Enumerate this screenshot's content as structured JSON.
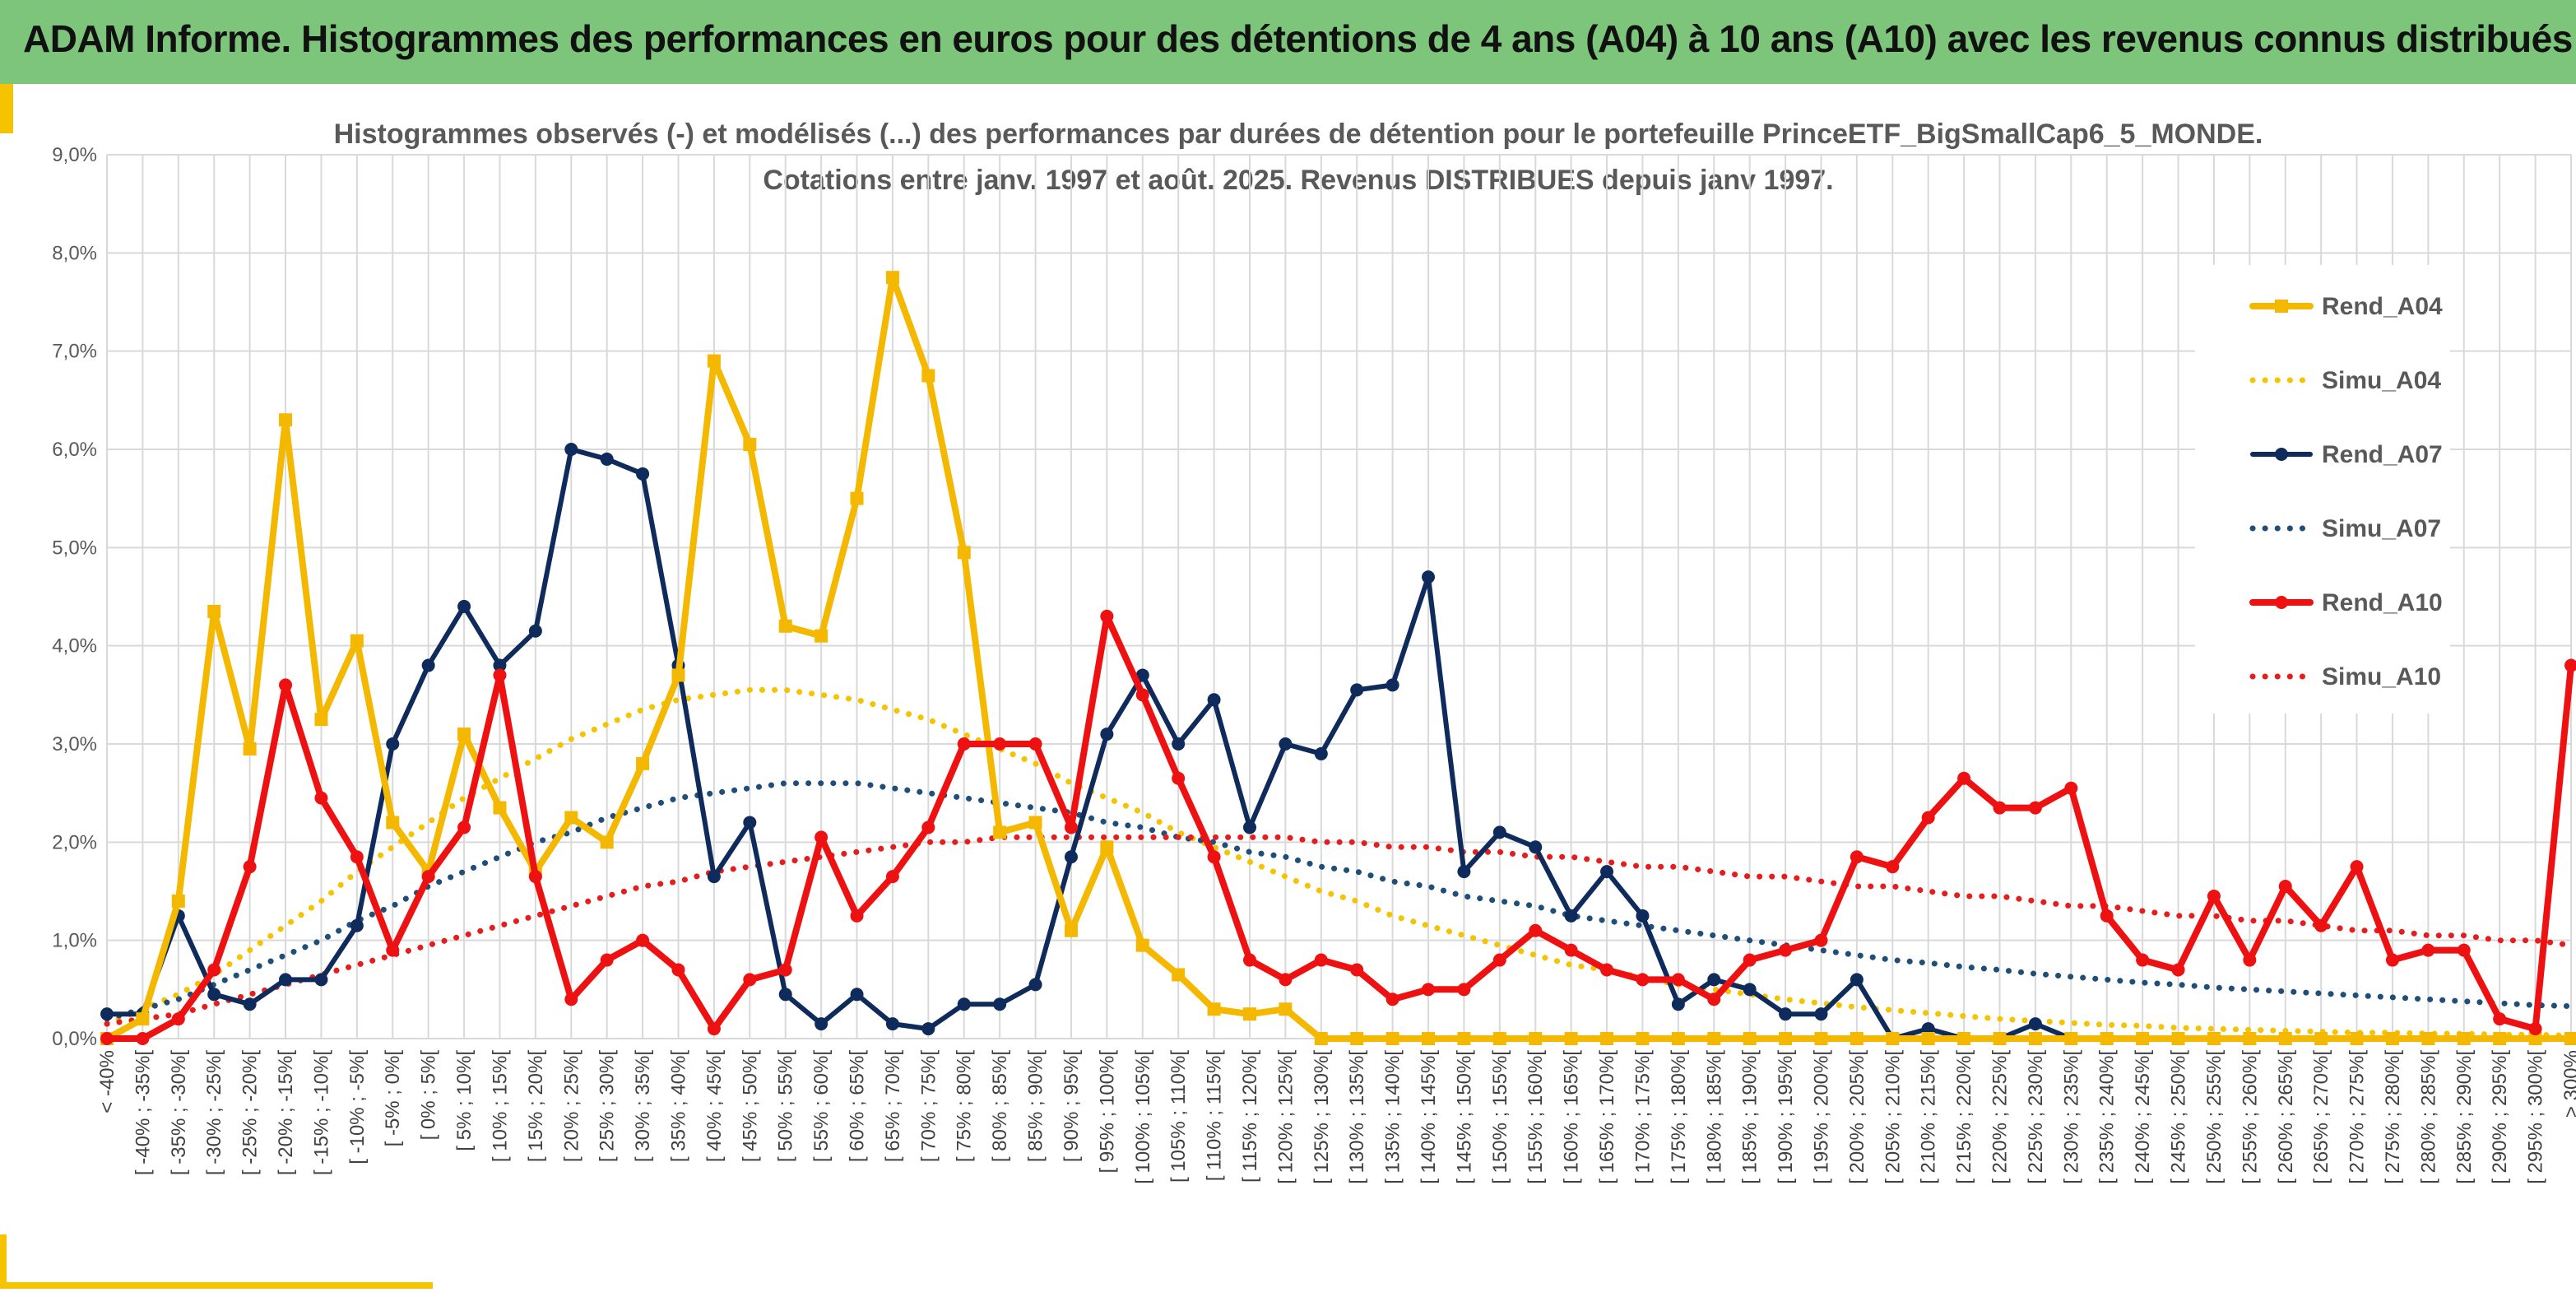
{
  "banner": {
    "title": "ADAM Informe. Histogrammes des performances en euros pour des détentions de 4 ans (A04) à 10 ans (A10) avec les revenus connus distribués",
    "color": "#7dc57b"
  },
  "colors": {
    "accent": "#f5c300",
    "rend_a04": "#f5b800",
    "rend_a07": "#0e2b5c",
    "rend_a10": "#ee1111",
    "simu_a04": "#f5c300",
    "simu_a07": "#1f4e79",
    "simu_a10": "#e41e1e",
    "grid": "#d9d9d9"
  },
  "chart_data": {
    "type": "line",
    "title": "Histogrammes observés (-) et modélisés (...) des performances par durées de détention pour le portefeuille PrinceETF_BigSmallCap6_5_MONDE.",
    "subtitle": "Cotations entre janv. 1997 et août. 2025. Revenus DISTRIBUES depuis janv 1997.",
    "ylim": [
      0,
      9
    ],
    "yticks": [
      "0,0%",
      "1,0%",
      "2,0%",
      "3,0%",
      "4,0%",
      "5,0%",
      "6,0%",
      "7,0%",
      "8,0%",
      "9,0%"
    ],
    "grid": true,
    "legend_position": "right",
    "categories": [
      "< -40%",
      "[ -40% ; -35%[",
      "[ -35% ; -30%[",
      "[ -30% ; -25%[",
      "[ -25% ; -20%[",
      "[ -20% ; -15%[",
      "[ -15% ; -10%[",
      "[ -10% ; -5%[",
      "[ -5% ; 0%[",
      "[ 0% ; 5%[",
      "[ 5% ; 10%[",
      "[ 10% ; 15%[",
      "[ 15% ; 20%[",
      "[ 20% ; 25%[",
      "[ 25% ; 30%[",
      "[ 30% ; 35%[",
      "[ 35% ; 40%[",
      "[ 40% ; 45%[",
      "[ 45% ; 50%[",
      "[ 50% ; 55%[",
      "[ 55% ; 60%[",
      "[ 60% ; 65%[",
      "[ 65% ; 70%[",
      "[ 70% ; 75%[",
      "[ 75% ; 80%[",
      "[ 80% ; 85%[",
      "[ 85% ; 90%[",
      "[ 90% ; 95%[",
      "[ 95% ; 100%[",
      "[ 100% ; 105%[",
      "[ 105% ; 110%[",
      "[ 110% ; 115%[",
      "[ 115% ; 120%[",
      "[ 120% ; 125%[",
      "[ 125% ; 130%[",
      "[ 130% ; 135%[",
      "[ 135% ; 140%[",
      "[ 140% ; 145%[",
      "[ 145% ; 150%[",
      "[ 150% ; 155%[",
      "[ 155% ; 160%[",
      "[ 160% ; 165%[",
      "[ 165% ; 170%[",
      "[ 170% ; 175%[",
      "[ 175% ; 180%[",
      "[ 180% ; 185%[",
      "[ 185% ; 190%[",
      "[ 190% ; 195%[",
      "[ 195% ; 200%[",
      "[ 200% ; 205%[",
      "[ 205% ; 210%[",
      "[ 210% ; 215%[",
      "[ 215% ; 220%[",
      "[ 220% ; 225%[",
      "[ 225% ; 230%[",
      "[ 230% ; 235%[",
      "[ 235% ; 240%[",
      "[ 240% ; 245%[",
      "[ 245% ; 250%[",
      "[ 250% ; 255%[",
      "[ 255% ; 260%[",
      "[ 260% ; 265%[",
      "[ 265% ; 270%[",
      "[ 270% ; 275%[",
      "[ 275% ; 280%[",
      "[ 280% ; 285%[",
      "[ 285% ; 290%[",
      "[ 290% ; 295%[",
      "[ 295% ; 300%[",
      "> 300%"
    ],
    "series": [
      {
        "name": "Rend_A04",
        "style": "solid",
        "marker": "square",
        "values": [
          0,
          0.2,
          1.4,
          4.35,
          2.95,
          6.3,
          3.25,
          4.05,
          2.2,
          1.7,
          3.1,
          2.35,
          1.7,
          2.25,
          2.0,
          2.8,
          3.7,
          6.9,
          6.05,
          4.2,
          4.1,
          5.5,
          7.75,
          6.75,
          4.95,
          2.1,
          2.2,
          1.1,
          1.95,
          0.95,
          0.65,
          0.3,
          0.25,
          0.3,
          0,
          0,
          0,
          0,
          0,
          0,
          0,
          0,
          0,
          0,
          0,
          0,
          0,
          0,
          0,
          0,
          0,
          0,
          0,
          0,
          0,
          0,
          0,
          0,
          0,
          0,
          0,
          0,
          0,
          0,
          0,
          0,
          0,
          0,
          0,
          0
        ]
      },
      {
        "name": "Simu_A04",
        "style": "dotted",
        "values": [
          0.15,
          0.3,
          0.45,
          0.65,
          0.9,
          1.15,
          1.4,
          1.7,
          1.95,
          2.2,
          2.45,
          2.65,
          2.85,
          3.05,
          3.2,
          3.35,
          3.45,
          3.5,
          3.55,
          3.55,
          3.5,
          3.45,
          3.35,
          3.25,
          3.1,
          2.95,
          2.8,
          2.6,
          2.45,
          2.3,
          2.1,
          1.95,
          1.8,
          1.65,
          1.5,
          1.4,
          1.25,
          1.15,
          1.05,
          0.95,
          0.85,
          0.75,
          0.7,
          0.62,
          0.55,
          0.5,
          0.45,
          0.4,
          0.36,
          0.32,
          0.29,
          0.26,
          0.23,
          0.2,
          0.18,
          0.16,
          0.14,
          0.13,
          0.11,
          0.1,
          0.09,
          0.08,
          0.07,
          0.06,
          0.06,
          0.05,
          0.05,
          0.04,
          0.04,
          0.03
        ]
      },
      {
        "name": "Rend_A07",
        "style": "solid",
        "marker": "circle",
        "values": [
          0.25,
          0.25,
          1.25,
          0.45,
          0.35,
          0.6,
          0.6,
          1.15,
          3.0,
          3.8,
          4.4,
          3.8,
          4.15,
          6.0,
          5.9,
          5.75,
          3.8,
          1.65,
          2.2,
          0.45,
          0.15,
          0.45,
          0.15,
          0.1,
          0.35,
          0.35,
          0.55,
          1.85,
          3.1,
          3.7,
          3.0,
          3.45,
          2.15,
          3.0,
          2.9,
          3.55,
          3.6,
          4.7,
          1.7,
          2.1,
          1.95,
          1.25,
          1.7,
          1.25,
          0.35,
          0.6,
          0.5,
          0.25,
          0.25,
          0.6,
          0,
          0.1,
          0,
          0,
          0.15,
          0,
          0,
          0,
          0,
          0,
          0,
          0,
          0,
          0,
          0,
          0,
          0,
          0,
          0,
          0
        ]
      },
      {
        "name": "Simu_A07",
        "style": "dotted",
        "values": [
          0.2,
          0.3,
          0.4,
          0.55,
          0.7,
          0.85,
          1.0,
          1.2,
          1.35,
          1.55,
          1.7,
          1.85,
          2.0,
          2.1,
          2.25,
          2.35,
          2.45,
          2.5,
          2.55,
          2.6,
          2.6,
          2.6,
          2.55,
          2.5,
          2.45,
          2.4,
          2.35,
          2.3,
          2.2,
          2.15,
          2.05,
          2.0,
          1.9,
          1.85,
          1.75,
          1.7,
          1.6,
          1.55,
          1.45,
          1.4,
          1.35,
          1.25,
          1.2,
          1.15,
          1.1,
          1.05,
          1.0,
          0.95,
          0.9,
          0.85,
          0.8,
          0.77,
          0.73,
          0.7,
          0.66,
          0.63,
          0.6,
          0.57,
          0.55,
          0.52,
          0.5,
          0.48,
          0.46,
          0.44,
          0.42,
          0.4,
          0.38,
          0.36,
          0.34,
          0.33
        ]
      },
      {
        "name": "Rend_A10",
        "style": "solid",
        "marker": "circle",
        "values": [
          0,
          0,
          0.2,
          0.7,
          1.75,
          3.6,
          2.45,
          1.85,
          0.9,
          1.65,
          2.15,
          3.7,
          1.65,
          0.4,
          0.8,
          1.0,
          0.7,
          0.1,
          0.6,
          0.7,
          2.05,
          1.25,
          1.65,
          2.15,
          3.0,
          3.0,
          3.0,
          2.15,
          4.3,
          3.5,
          2.65,
          1.85,
          0.8,
          0.6,
          0.8,
          0.7,
          0.4,
          0.5,
          0.5,
          0.8,
          1.1,
          0.9,
          0.7,
          0.6,
          0.6,
          0.4,
          0.8,
          0.9,
          1.0,
          1.85,
          1.75,
          2.25,
          2.65,
          2.35,
          2.35,
          2.55,
          1.25,
          0.8,
          0.7,
          1.45,
          0.8,
          1.55,
          1.15,
          1.75,
          0.8,
          0.9,
          0.9,
          0.2,
          0.1,
          3.8
        ]
      },
      {
        "name": "Simu_A10",
        "style": "dotted",
        "values": [
          0.15,
          0.2,
          0.25,
          0.35,
          0.45,
          0.55,
          0.65,
          0.75,
          0.85,
          0.95,
          1.05,
          1.15,
          1.25,
          1.35,
          1.45,
          1.55,
          1.6,
          1.7,
          1.75,
          1.8,
          1.85,
          1.9,
          1.95,
          2.0,
          2.0,
          2.05,
          2.05,
          2.05,
          2.05,
          2.05,
          2.05,
          2.05,
          2.05,
          2.05,
          2.0,
          2.0,
          1.95,
          1.95,
          1.9,
          1.9,
          1.85,
          1.85,
          1.8,
          1.75,
          1.75,
          1.7,
          1.65,
          1.65,
          1.6,
          1.55,
          1.55,
          1.5,
          1.45,
          1.45,
          1.4,
          1.35,
          1.35,
          1.3,
          1.25,
          1.25,
          1.2,
          1.2,
          1.15,
          1.1,
          1.1,
          1.05,
          1.05,
          1.0,
          1.0,
          0.95
        ]
      }
    ]
  }
}
